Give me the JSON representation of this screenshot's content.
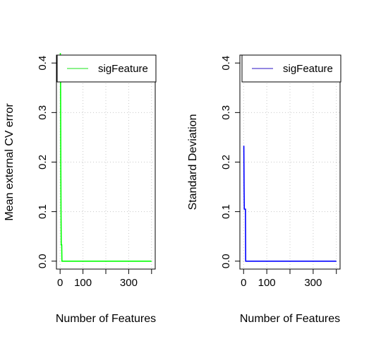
{
  "chart_data": [
    {
      "type": "line",
      "xlabel": "Number of Features",
      "ylabel": "Mean external CV error",
      "xlim": [
        0,
        400
      ],
      "ylim": [
        0,
        0.4
      ],
      "xticks": [
        0,
        100,
        200,
        300,
        400
      ],
      "xtick_labels": [
        "0",
        "100",
        "",
        "300",
        ""
      ],
      "yticks": [
        0.0,
        0.1,
        0.2,
        0.3,
        0.4
      ],
      "ytick_labels": [
        "0.0",
        "0.1",
        "0.2",
        "0.3",
        "0.4"
      ],
      "grid": true,
      "legend_position": "top-right",
      "series": [
        {
          "name": "sigFeature",
          "color": "#00ff00",
          "x": [
            1,
            2,
            3,
            4,
            5,
            6,
            7,
            8,
            9,
            10,
            400
          ],
          "y": [
            0.42,
            0.37,
            0.2,
            0.1,
            0.033,
            0.033,
            0.033,
            0.0,
            0.0,
            0.0,
            0.0
          ]
        }
      ]
    },
    {
      "type": "line",
      "xlabel": "Number of Features",
      "ylabel": "Standard Deviation",
      "xlim": [
        0,
        400
      ],
      "ylim": [
        0,
        0.4
      ],
      "xticks": [
        0,
        100,
        200,
        300,
        400
      ],
      "xtick_labels": [
        "0",
        "100",
        "",
        "300",
        ""
      ],
      "yticks": [
        0.0,
        0.1,
        0.2,
        0.3,
        0.4
      ],
      "ytick_labels": [
        "0.0",
        "0.1",
        "0.2",
        "0.3",
        "0.4"
      ],
      "grid": true,
      "legend_position": "top-right",
      "series": [
        {
          "name": "sigFeature",
          "color": "#0000ff",
          "x": [
            1,
            2,
            3,
            4,
            5,
            6,
            7,
            8,
            9,
            10,
            400
          ],
          "y": [
            0.233,
            0.15,
            0.105,
            0.105,
            0.105,
            0.105,
            0.105,
            0.105,
            0.0,
            0.0,
            0.0
          ]
        }
      ]
    }
  ]
}
